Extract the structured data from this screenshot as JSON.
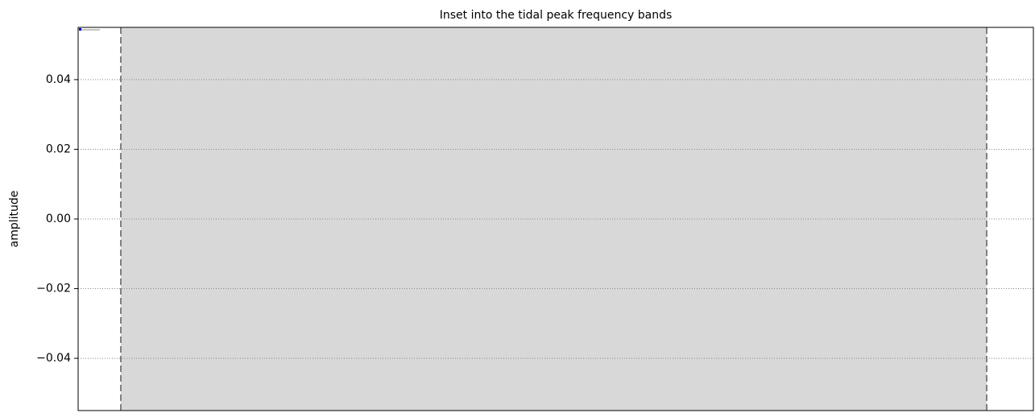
{
  "chart_data": {
    "type": "line",
    "title": "Inset into the tidal peak frequency bands",
    "ylabel": "amplitude",
    "ylim": [
      -0.055,
      0.055
    ],
    "yticks": [
      {
        "value": -0.04,
        "label": "−0.04"
      },
      {
        "value": -0.02,
        "label": "−0.02"
      },
      {
        "value": 0,
        "label": "0.00"
      },
      {
        "value": 0.02,
        "label": "0.02"
      },
      {
        "value": 0.04,
        "label": "0.04"
      }
    ],
    "grid": true,
    "series": []
  }
}
